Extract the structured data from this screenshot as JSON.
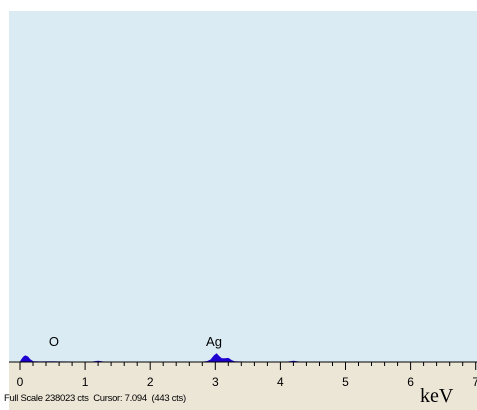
{
  "status": {
    "full_scale": "Full Scale 238023 cts",
    "cursor": "Cursor: 7.094  (443 cts)"
  },
  "colors": {
    "plot_background": "#daebf3",
    "axis_band": "#ece6d7",
    "spectrum_fill": "#1e00d0",
    "outline": "#000000"
  },
  "chart_data": {
    "type": "area",
    "title": "",
    "xlabel": "keV",
    "ylabel": "",
    "xlim": [
      -0.1,
      7
    ],
    "ylim": [
      0,
      238023
    ],
    "x_ticks": [
      "0",
      "1",
      "2",
      "3",
      "4",
      "5",
      "6",
      "7"
    ],
    "peak_labels": [
      {
        "element": "O",
        "energy": 0.52
      },
      {
        "element": "Ag",
        "energy": 2.98
      }
    ],
    "series": [
      {
        "x": [
          -0.1,
          0.0,
          0.02,
          0.05,
          0.08,
          0.12,
          0.16,
          0.2,
          0.3,
          0.5,
          0.6,
          1.1,
          1.2,
          1.3,
          2.8,
          2.88,
          2.93,
          2.98,
          3.02,
          3.06,
          3.1,
          3.15,
          3.2,
          3.25,
          3.3,
          3.5,
          4.1,
          4.2,
          4.3,
          7.0
        ],
        "y": [
          0,
          0,
          1500,
          3300,
          4300,
          3600,
          1500,
          400,
          200,
          300,
          200,
          100,
          700,
          100,
          100,
          500,
          1500,
          4300,
          5600,
          3700,
          2300,
          2400,
          2600,
          1100,
          300,
          100,
          100,
          600,
          100,
          0
        ]
      }
    ]
  }
}
